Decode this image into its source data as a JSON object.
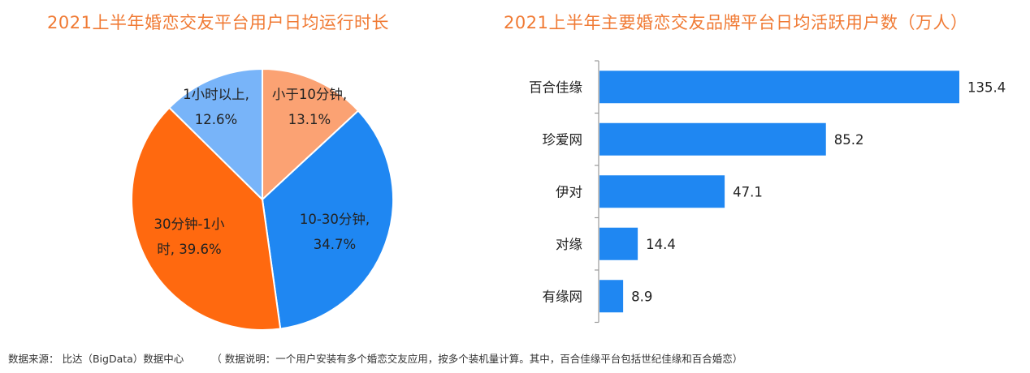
{
  "footer": {
    "source": "数据来源： 比达（BigData）数据中心",
    "note": "（ 数据说明：一个用户安装有多个婚恋交友应用，按多个装机量计算。其中，百合佳缘平台包括世纪佳缘和百合婚恋）"
  },
  "chart_data": [
    {
      "type": "pie",
      "title": "2021上半年婚恋交友平台用户日均运行时长",
      "slices": [
        {
          "label_lines": [
            "小于10分钟,",
            "13.1%"
          ],
          "value": 13.1,
          "color": "#FBA273"
        },
        {
          "label_lines": [
            "10-30分钟,",
            "34.7%"
          ],
          "value": 34.7,
          "color": "#1F87F2"
        },
        {
          "label_lines": [
            "30分钟-1小",
            "时, 39.6%"
          ],
          "value": 39.6,
          "color": "#FF690F"
        },
        {
          "label_lines": [
            "1小时以上,",
            "12.6%"
          ],
          "value": 12.6,
          "color": "#78B4F9"
        }
      ]
    },
    {
      "type": "bar",
      "orientation": "horizontal",
      "title": "2021上半年主要婚恋交友品牌平台日均活跃用户数（万人）",
      "categories": [
        "百合佳缘",
        "珍爱网",
        "伊对",
        "对缘",
        "有缘网"
      ],
      "values": [
        135.4,
        85.2,
        47.1,
        14.4,
        8.9
      ],
      "value_labels": [
        "135.4",
        "85.2",
        "47.1",
        "14.4",
        "8.9"
      ],
      "color": "#1F87F2",
      "xlim": [
        0,
        135.4
      ],
      "grid": false,
      "xaxis_visible": false
    }
  ]
}
